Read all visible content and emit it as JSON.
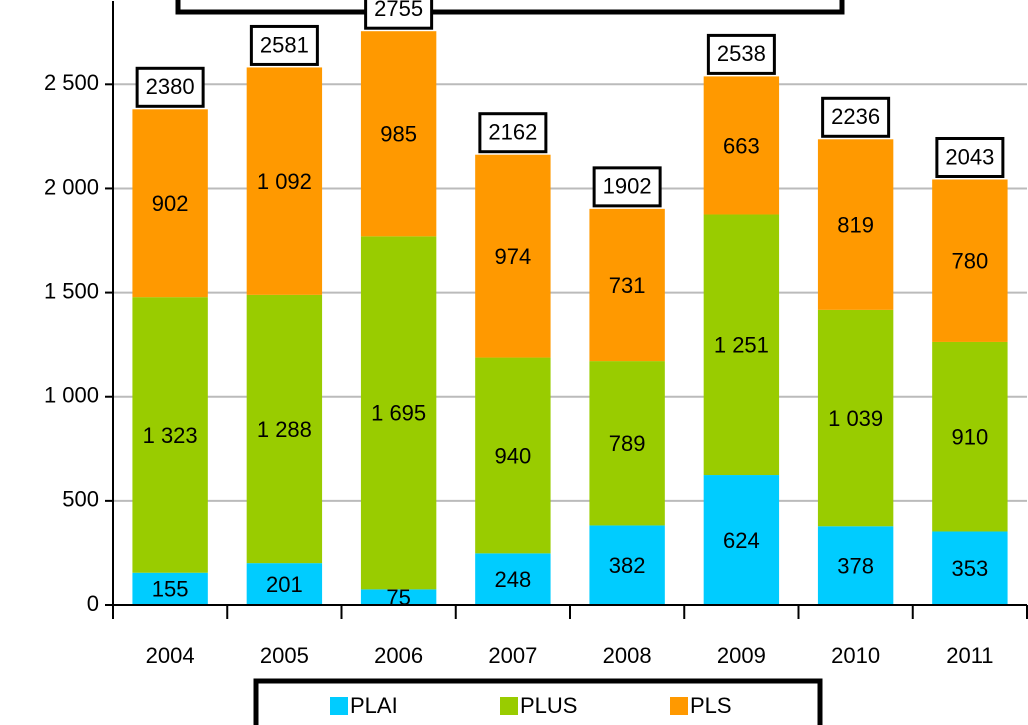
{
  "chart_data": {
    "type": "stacked_bar",
    "categories": [
      "2004",
      "2005",
      "2006",
      "2007",
      "2008",
      "2009",
      "2010",
      "2011"
    ],
    "series": [
      {
        "name": "PLAI",
        "color": "#00ccff",
        "values": [
          155,
          201,
          75,
          248,
          382,
          624,
          378,
          353
        ]
      },
      {
        "name": "PLUS",
        "color": "#99cc00",
        "values": [
          1323,
          1288,
          1695,
          940,
          789,
          1251,
          1039,
          910
        ],
        "value_labels": [
          "1 323",
          "1 288",
          "1 695",
          "940",
          "789",
          "1 251",
          "1 039",
          "910"
        ]
      },
      {
        "name": "PLS",
        "color": "#ff9900",
        "values": [
          902,
          1092,
          985,
          974,
          731,
          663,
          819,
          780
        ],
        "value_labels": [
          "902",
          "1 092",
          "985",
          "974",
          "731",
          "663",
          "819",
          "780"
        ]
      }
    ],
    "totals": [
      2380,
      2581,
      2755,
      2162,
      1902,
      2538,
      2236,
      2043
    ],
    "ylim": [
      0,
      2900
    ],
    "yticks": [
      0,
      500,
      {
        "value": 1000,
        "label": "1 000"
      },
      {
        "value": 1500,
        "label": "1 500"
      },
      {
        "value": 2000,
        "label": "2 000"
      },
      {
        "value": 2500,
        "label": "2 500"
      }
    ],
    "grid": true,
    "legend": "bottom"
  }
}
